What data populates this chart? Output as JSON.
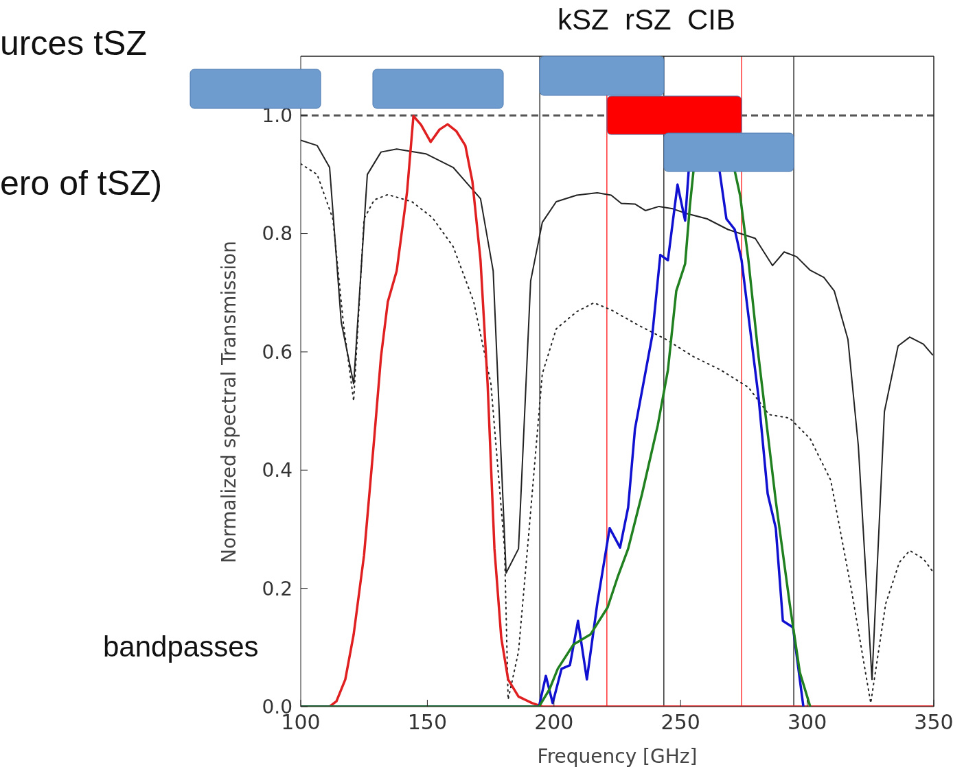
{
  "chart_data": {
    "type": "line",
    "xlabel": "Frequency [GHz]",
    "ylabel": "Normalized spectral Transmission",
    "xlim": [
      100,
      350
    ],
    "ylim": [
      0,
      1.1
    ],
    "xticks": [
      100,
      150,
      200,
      250,
      300,
      350
    ],
    "yticks": [
      {
        "value": 0,
        "label": "0.0"
      },
      {
        "value": 0.2,
        "label": "0.2"
      },
      {
        "value": 0.4,
        "label": "0.4"
      },
      {
        "value": 0.6,
        "label": "0.6"
      },
      {
        "value": 0.8,
        "label": "0.8"
      },
      {
        "value": 1,
        "label": "1.0"
      }
    ],
    "marker": "none",
    "annotations": [
      "urces tSZ",
      "ero of tSZ)",
      "kSZ  rSZ  CIB",
      "bandpasses"
    ],
    "ref_lines": [
      {
        "axis": "y",
        "value": 1,
        "color": "#555555",
        "line_style": "dashed"
      },
      {
        "axis": "x",
        "value": 194.4,
        "color": "#000000"
      },
      {
        "axis": "x",
        "value": 220.9,
        "color": "#ff0000"
      },
      {
        "axis": "x",
        "value": 243.4,
        "color": "#000000"
      },
      {
        "axis": "x",
        "value": 274.1,
        "color": "#ff0000"
      },
      {
        "axis": "x",
        "value": 294.7,
        "color": "#000000"
      }
    ],
    "series": [
      {
        "color": "#222222",
        "line_style": "solid",
        "x": [
          100,
          106.5,
          111.4,
          116,
          120.9,
          126.3,
          131.7,
          137.9,
          149.4,
          160.2,
          171,
          176,
          181.1,
          186,
          190.8,
          195.4,
          200.9,
          209,
          217.1,
          222.6,
          226.6,
          232,
          236.1,
          241.5,
          246.9,
          252.4,
          260.5,
          268.7,
          279.5,
          286.3,
          290.9,
          295.8,
          301.2,
          306.6,
          310.7,
          316.1,
          320.2,
          325.6,
          330.5,
          335.9,
          340.5,
          345.9,
          349.5
        ],
        "values": [
          0.958,
          0.949,
          0.912,
          0.65,
          0.546,
          0.9,
          0.938,
          0.943,
          0.935,
          0.912,
          0.859,
          0.737,
          0.226,
          0.267,
          0.72,
          0.819,
          0.854,
          0.865,
          0.869,
          0.865,
          0.851,
          0.85,
          0.839,
          0.846,
          0.842,
          0.834,
          0.825,
          0.807,
          0.792,
          0.746,
          0.769,
          0.761,
          0.738,
          0.726,
          0.703,
          0.621,
          0.441,
          0.046,
          0.499,
          0.61,
          0.625,
          0.613,
          0.595
        ]
      },
      {
        "color": "#222222",
        "line_style": "dotted",
        "x": [
          100,
          106.5,
          112.7,
          116.8,
          120.9,
          125,
          129,
          134.4,
          143.9,
          152,
          160.2,
          168.3,
          175.1,
          180.5,
          181.9,
          186,
          190,
          195.4,
          200.9,
          209,
          215.8,
          222.6,
          233.4,
          244.3,
          255.1,
          266,
          276.8,
          284.9,
          293.1,
          301.2,
          309.3,
          317.5,
          325.1,
          331,
          336.4,
          340.5,
          345.9,
          349.5
        ],
        "values": [
          0.918,
          0.9,
          0.825,
          0.65,
          0.517,
          0.825,
          0.857,
          0.866,
          0.854,
          0.827,
          0.778,
          0.685,
          0.546,
          0.267,
          0.012,
          0.093,
          0.29,
          0.563,
          0.639,
          0.668,
          0.683,
          0.671,
          0.645,
          0.621,
          0.592,
          0.569,
          0.54,
          0.494,
          0.488,
          0.453,
          0.383,
          0.197,
          0.006,
          0.174,
          0.244,
          0.264,
          0.25,
          0.229
        ]
      },
      {
        "color": "#e02020",
        "line_style": "solid",
        "x": [
          100,
          111.4,
          114.1,
          117.6,
          120.9,
          125,
          129,
          131.7,
          134.4,
          137.9,
          142,
          144.5,
          147.5,
          151.3,
          154.8,
          158,
          161.5,
          165,
          167.8,
          171,
          173.8,
          176.5,
          179.2,
          181.9,
          186,
          191.4,
          195.4,
          350
        ],
        "values": [
          0,
          0,
          0.009,
          0.046,
          0.122,
          0.256,
          0.453,
          0.592,
          0.685,
          0.737,
          0.871,
          0.999,
          0.984,
          0.955,
          0.976,
          0.985,
          0.973,
          0.949,
          0.888,
          0.755,
          0.546,
          0.267,
          0.116,
          0.046,
          0.017,
          0.006,
          0,
          0
        ]
      },
      {
        "color": "#1010d0",
        "line_style": "solid",
        "x": [
          100,
          194.1,
          196.8,
          199.5,
          203,
          206.3,
          209.5,
          213,
          217.1,
          222,
          226.1,
          229.3,
          232,
          238.8,
          242,
          245,
          248.8,
          251.8,
          253.2,
          259,
          265.4,
          268.1,
          271.4,
          274.1,
          278.1,
          280.8,
          284.4,
          287.6,
          290.4,
          294.4,
          298.5
        ],
        "values": [
          0,
          0,
          0.052,
          0.006,
          0.064,
          0.07,
          0.145,
          0.046,
          0.174,
          0.302,
          0.269,
          0.337,
          0.47,
          0.627,
          0.764,
          0.755,
          0.883,
          0.822,
          0.906,
          null,
          0.906,
          0.825,
          0.807,
          0.755,
          0.616,
          0.523,
          0.36,
          0.302,
          0.145,
          0.134,
          0
        ]
      },
      {
        "color": "#208020",
        "line_style": "solid",
        "x": [
          100,
          194.1,
          198.2,
          201.5,
          207.7,
          214.4,
          221.2,
          225.3,
          229.3,
          234.8,
          241,
          245,
          248.3,
          251.8,
          253.7,
          255.1,
          263,
          271.4,
          273.5,
          276.8,
          280.8,
          287.6,
          293.1,
          297.1,
          301.2
        ],
        "values": [
          0,
          0,
          0.029,
          0.064,
          0.105,
          0.122,
          0.168,
          0.221,
          0.267,
          0.36,
          0.476,
          0.569,
          0.703,
          0.749,
          0.848,
          0.906,
          null,
          0.906,
          0.865,
          0.755,
          0.592,
          0.348,
          0.174,
          0.058,
          0
        ]
      }
    ]
  }
}
